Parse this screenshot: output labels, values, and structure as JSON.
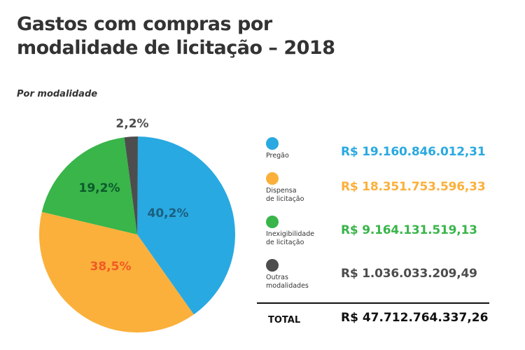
{
  "chart_data": {
    "type": "pie",
    "title": "Gastos com compras por modalidade de licitação – 2018",
    "subtitle": "Por modalidade",
    "slices": [
      {
        "name": "Pregão",
        "percent": 40.2,
        "percent_label": "40,2%",
        "value_label": "R$ 19.160.846.012,31",
        "color": "#29a9e1",
        "label_color": "#1b5f7f"
      },
      {
        "name": "Dispensa\nde licitação",
        "percent": 38.5,
        "percent_label": "38,5%",
        "value_label": "R$ 18.351.753.596,33",
        "color": "#fbb03b",
        "label_color": "#f15a24"
      },
      {
        "name": "Inexigibilidade\nde licitação",
        "percent": 19.2,
        "percent_label": "19,2%",
        "value_label": "R$ 9.164.131.519,13",
        "color": "#39b54a",
        "label_color": "#0b5a2b"
      },
      {
        "name": "Outras\nmodalidades",
        "percent": 2.2,
        "percent_label": "2,2%",
        "value_label": "R$ 1.036.033.209,49",
        "color": "#4d4d4d",
        "label_color": "#4d4d4d"
      }
    ],
    "total_label": "TOTAL",
    "total_value": "R$ 47.712.764.337,26",
    "legend_position": "right"
  }
}
